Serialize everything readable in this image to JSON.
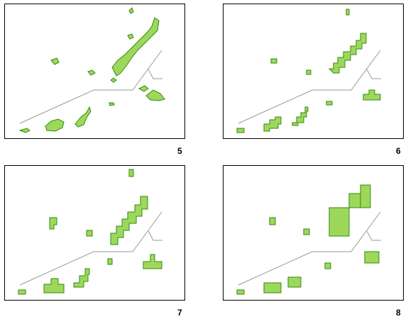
{
  "panels": [
    {
      "label": "5",
      "style": "outline"
    },
    {
      "label": "6",
      "style": "coarse-grid"
    },
    {
      "label": "7",
      "style": "medium-grid"
    },
    {
      "label": "8",
      "style": "large-grid"
    }
  ],
  "colors": {
    "land_fill": "#9ed85a",
    "land_stroke": "#2f8a10",
    "divider": "#999999",
    "frame": "#000000"
  }
}
